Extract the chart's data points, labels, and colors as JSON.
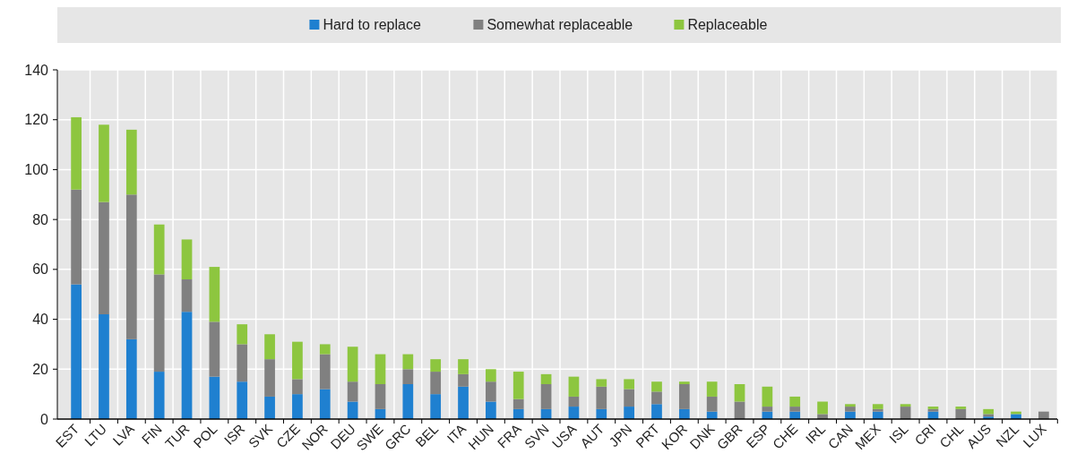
{
  "chart_data": {
    "type": "bar",
    "stacked": true,
    "legend": "top",
    "grid": true,
    "categories": [
      "EST",
      "LTU",
      "LVA",
      "FIN",
      "TUR",
      "POL",
      "ISR",
      "SVK",
      "CZE",
      "NOR",
      "DEU",
      "SWE",
      "GRC",
      "BEL",
      "ITA",
      "HUN",
      "FRA",
      "SVN",
      "USA",
      "AUT",
      "JPN",
      "PRT",
      "KOR",
      "DNK",
      "GBR",
      "ESP",
      "CHE",
      "IRL",
      "CAN",
      "MEX",
      "ISL",
      "CRI",
      "CHL",
      "AUS",
      "NZL",
      "LUX"
    ],
    "series": [
      {
        "name": "Hard to replace",
        "color": "#1f80d0",
        "values": [
          54,
          42,
          32,
          19,
          43,
          17,
          15,
          9,
          10,
          12,
          7,
          4,
          14,
          10,
          13,
          7,
          4,
          4,
          5,
          4,
          5,
          6,
          4,
          3,
          0,
          3,
          3,
          0,
          3,
          3,
          0,
          3,
          0,
          1,
          2,
          0
        ]
      },
      {
        "name": "Somewhat replaceable",
        "color": "#808080",
        "values": [
          38,
          45,
          58,
          39,
          13,
          22,
          15,
          15,
          6,
          14,
          8,
          10,
          6,
          9,
          5,
          8,
          4,
          10,
          4,
          9,
          7,
          5,
          10,
          6,
          7,
          2,
          2,
          2,
          2,
          1,
          5,
          1,
          4,
          1,
          0,
          3
        ]
      },
      {
        "name": "Replaceable",
        "color": "#8dc63f",
        "values": [
          29,
          31,
          26,
          20,
          16,
          22,
          8,
          10,
          15,
          4,
          14,
          12,
          6,
          5,
          6,
          5,
          11,
          4,
          8,
          3,
          4,
          4,
          1,
          6,
          7,
          8,
          4,
          5,
          1,
          2,
          1,
          1,
          1,
          2,
          1,
          0
        ]
      }
    ],
    "ylim": [
      0,
      140
    ],
    "yticks": [
      0,
      20,
      40,
      60,
      80,
      100,
      120,
      140
    ]
  }
}
